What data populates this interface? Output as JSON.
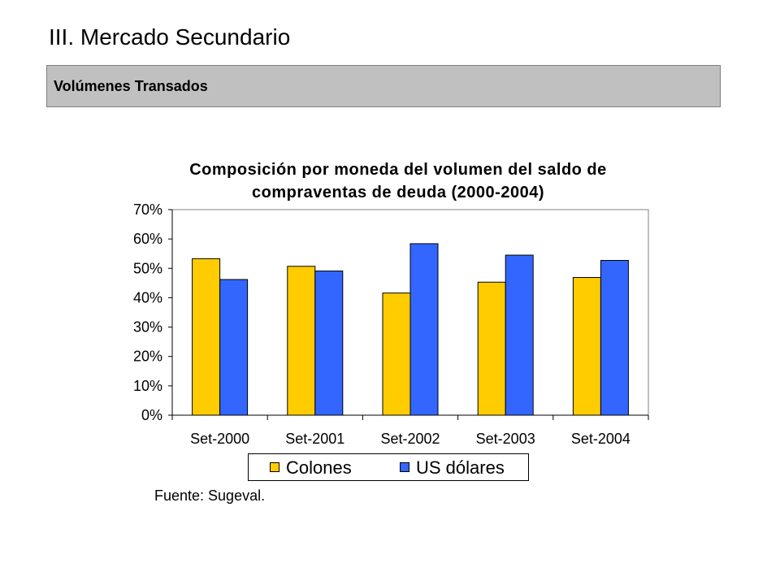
{
  "slide": {
    "title": "III. Mercado Secundario",
    "section": "Volúmenes Transados",
    "source": "Fuente: Sugeval."
  },
  "chart_data": {
    "type": "bar",
    "title_line1": "Composición por moneda del volumen del saldo de",
    "title_line2": "compraventas de deuda (2000-2004)",
    "categories": [
      "Set-2000",
      "Set-2001",
      "Set-2002",
      "Set-2003",
      "Set-2004"
    ],
    "series": [
      {
        "name": "Colones",
        "color": "#ffcc00",
        "values": [
          53.3,
          50.7,
          41.6,
          45.3,
          46.9
        ]
      },
      {
        "name": "US dólares",
        "color": "#3366ff",
        "values": [
          46.2,
          49.1,
          58.4,
          54.5,
          52.7
        ]
      }
    ],
    "ylim": [
      0,
      70
    ],
    "yticks": [
      "0%",
      "10%",
      "20%",
      "30%",
      "40%",
      "50%",
      "60%",
      "70%"
    ],
    "grid": false,
    "legend": "bottom"
  }
}
